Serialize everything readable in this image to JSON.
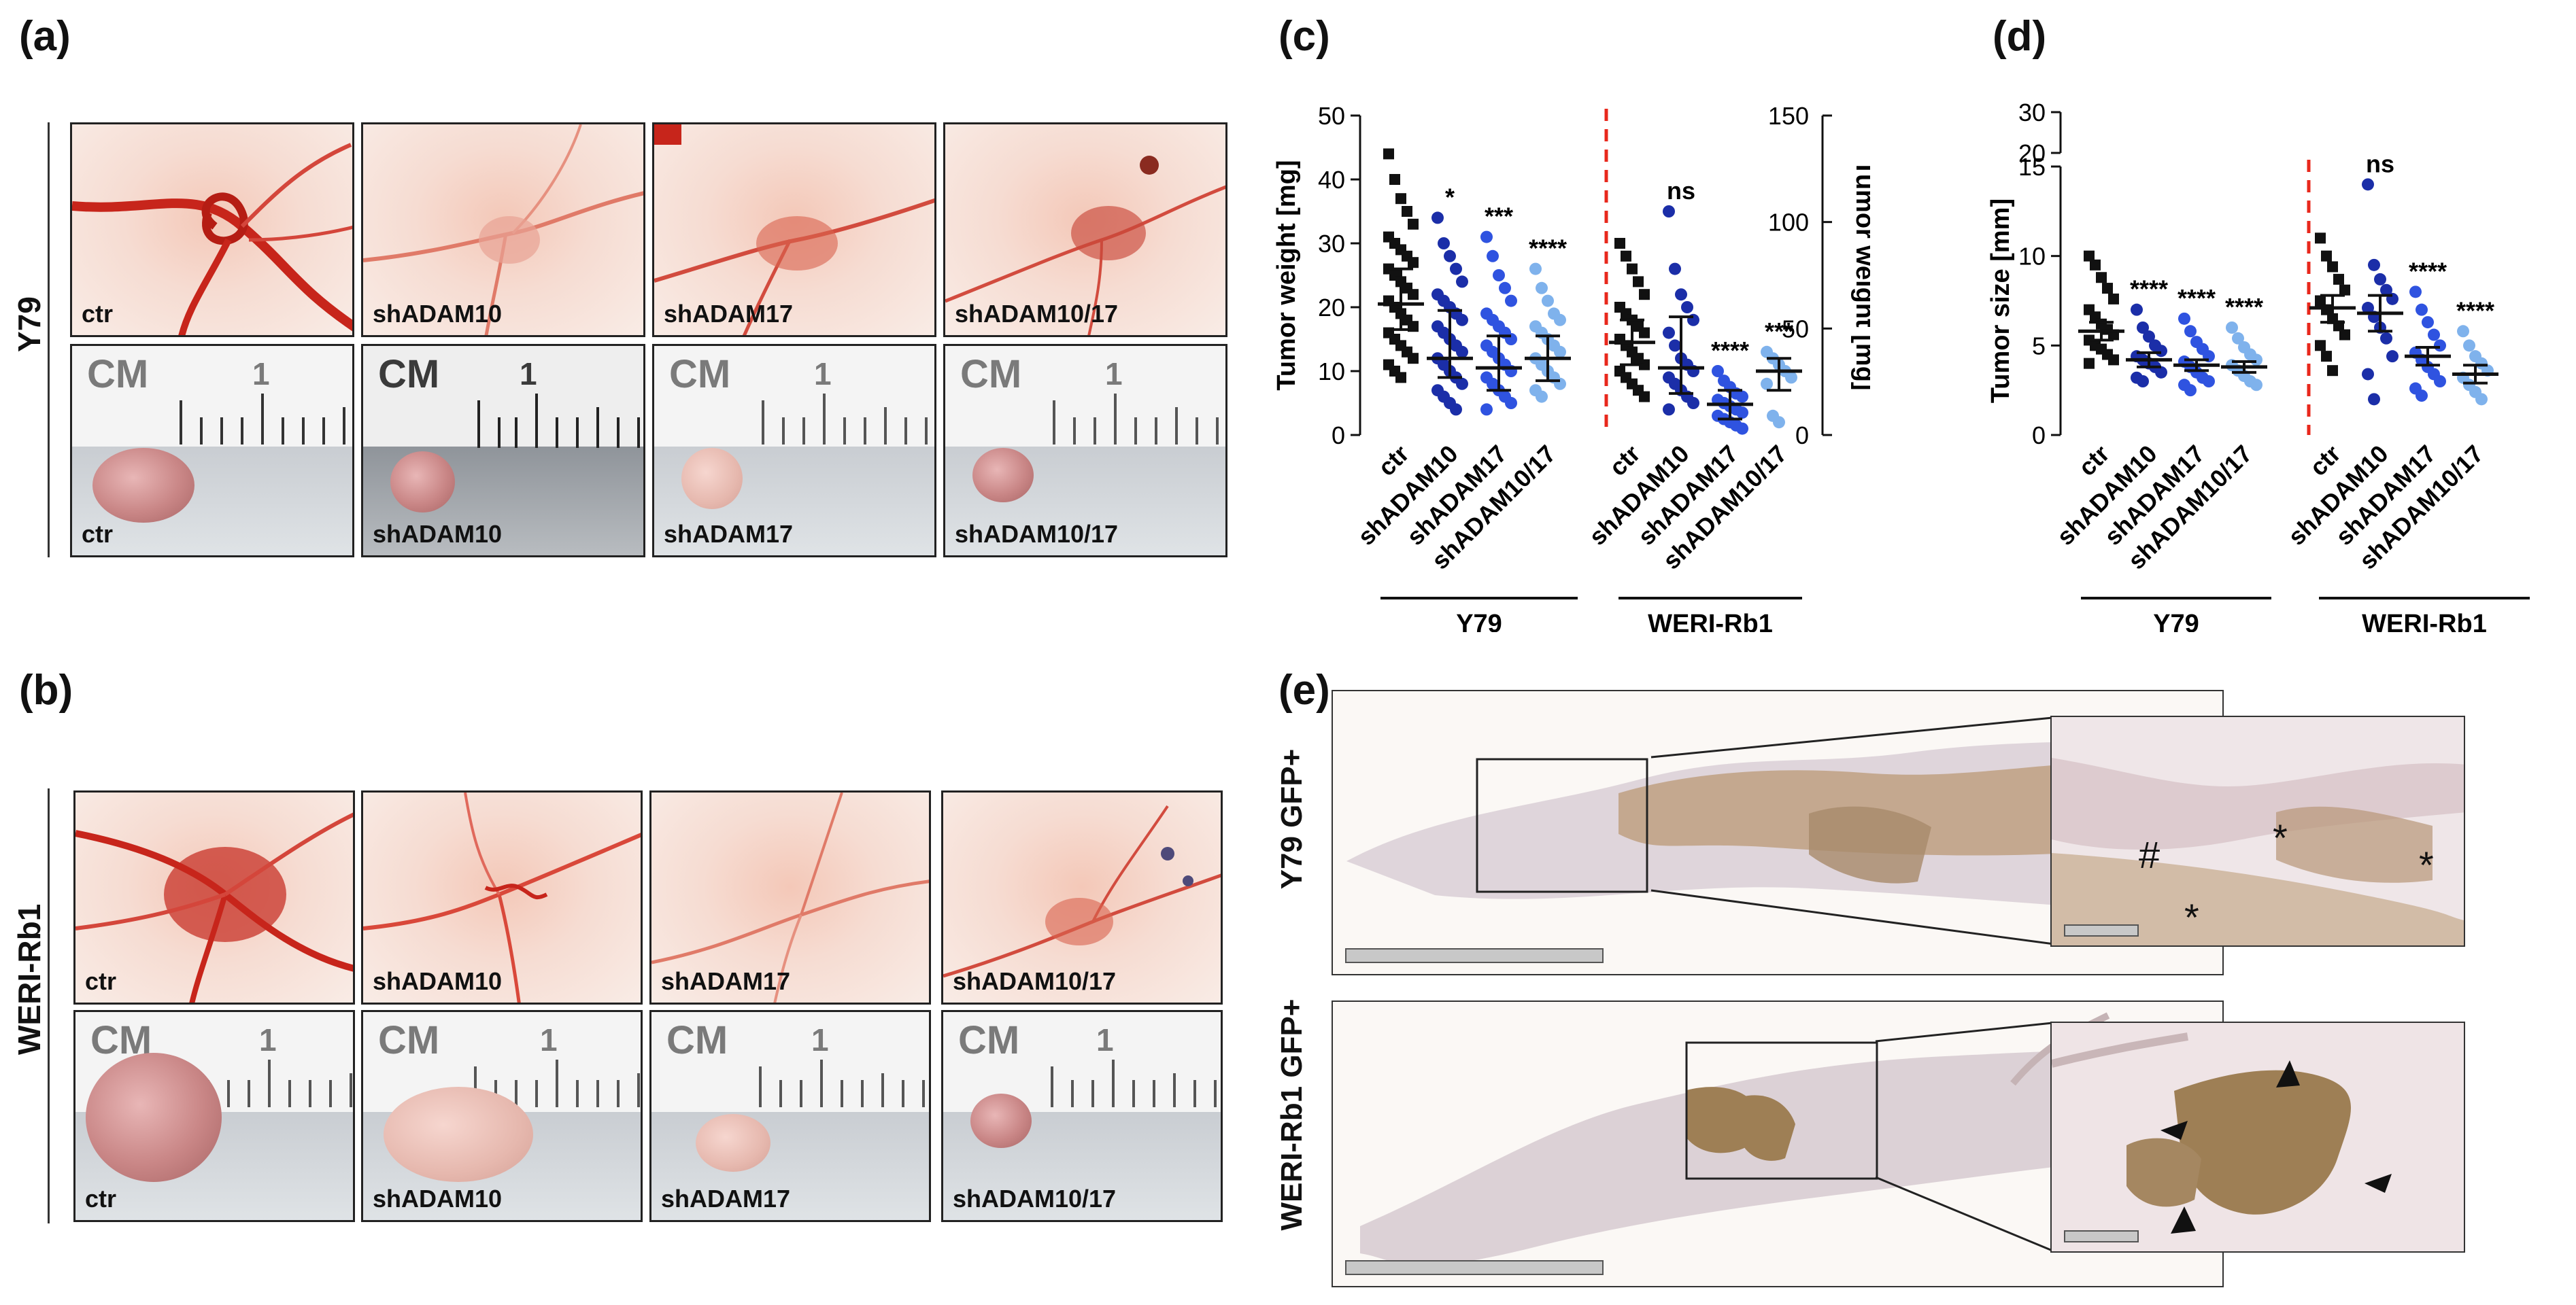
{
  "panels": {
    "a": "(a)",
    "b": "(b)",
    "c": "(c)",
    "d": "(d)",
    "e": "(e)"
  },
  "rows": {
    "a_label": "Y79",
    "b_label": "WERI-Rb1"
  },
  "photo_labels": {
    "a_top": [
      "ctr",
      "shADAM10",
      "shADAM17",
      "shADAM10/17"
    ],
    "a_bottom": [
      "ctr",
      "shADAM10",
      "shADAM17",
      "shADAM10/17"
    ],
    "b_top": [
      "ctr",
      "shADAM10",
      "shADAM17",
      "shADAM10/17"
    ],
    "b_bottom": [
      "ctr",
      "shADAM10",
      "shADAM17",
      "shADAM10/17"
    ]
  },
  "ruler": {
    "cm": "CM",
    "one": "1"
  },
  "histo": {
    "top_label": "Y79 GFP+",
    "bottom_label": "WERI-Rb1 GFP+",
    "hash": "#",
    "star": "*"
  },
  "chart_data": [
    {
      "type": "scatter",
      "panel": "c",
      "ylabel": "Tumor weight [mg]",
      "ylabel_right": "Tumor weight [mg]",
      "ylim": [
        0,
        50
      ],
      "yticks": [
        "0",
        "10",
        "20",
        "30",
        "40",
        "50"
      ],
      "ylim_right": [
        0,
        150
      ],
      "yticks_right": [
        "0",
        "50",
        "100",
        "150"
      ],
      "categories": [
        "ctr",
        "shADAM10",
        "shADAM17",
        "shADAM10/17",
        "ctr",
        "shADAM10",
        "shADAM17",
        "shADAM10/17"
      ],
      "groups": [
        "Y79",
        "WERI-Rb1"
      ],
      "means": [
        20.5,
        12,
        10.5,
        12,
        14.5,
        10.5,
        4.8,
        10
      ],
      "sem_low": [
        16.5,
        9,
        7,
        8.5,
        11,
        6.5,
        2.5,
        7
      ],
      "sem_high": [
        26,
        19.5,
        15.5,
        15.5,
        18,
        18.5,
        7,
        12
      ],
      "significance": [
        "",
        "*",
        "***",
        "****",
        "",
        "ns",
        "****",
        "***"
      ],
      "points": [
        [
          44,
          40,
          37,
          35,
          33,
          31,
          30,
          29,
          28,
          27,
          26,
          25,
          24,
          23,
          22,
          21,
          20,
          19,
          18,
          17,
          16,
          15,
          14,
          13,
          12,
          11,
          10,
          9
        ],
        [
          34,
          30,
          28,
          26,
          24,
          22,
          21,
          20,
          19,
          18,
          17,
          16,
          15,
          14,
          13,
          12,
          11,
          10,
          9,
          8,
          7,
          6,
          5,
          4
        ],
        [
          31,
          28,
          25,
          23,
          21,
          19,
          18,
          17,
          16,
          15,
          14,
          13,
          12,
          11,
          10,
          9,
          8,
          7,
          6,
          5,
          4
        ],
        [
          26,
          23,
          21,
          19,
          18,
          17,
          16,
          15,
          14,
          13,
          12,
          11,
          10,
          9,
          8,
          7,
          6
        ],
        [
          30,
          28,
          26,
          24,
          22,
          20,
          19,
          18,
          17,
          16,
          15,
          14,
          13,
          12,
          11,
          10,
          9,
          8,
          7,
          6
        ],
        [
          35,
          26,
          22,
          20,
          18,
          16,
          14,
          12,
          11,
          10,
          9,
          8,
          7,
          6,
          5,
          4
        ],
        [
          10,
          8.5,
          7.5,
          6.5,
          6,
          5.5,
          5,
          4.5,
          4,
          3.5,
          3,
          2.5,
          2,
          1.5,
          1
        ],
        [
          13,
          12,
          11,
          10,
          9,
          8,
          3,
          2
        ]
      ]
    },
    {
      "type": "scatter",
      "panel": "d",
      "ylabel": "Tumor size [mm]",
      "yticks": [
        "0",
        "5",
        "10",
        "15",
        "20",
        "30"
      ],
      "categories": [
        "ctr",
        "shADAM10",
        "shADAM17",
        "shADAM10/17",
        "ctr",
        "shADAM10",
        "shADAM17",
        "shADAM10/17"
      ],
      "groups": [
        "Y79",
        "WERI-Rb1"
      ],
      "means": [
        5.8,
        4.2,
        3.9,
        3.8,
        7.1,
        6.8,
        4.4,
        3.4
      ],
      "sem_low": [
        5.3,
        3.8,
        3.6,
        3.5,
        6.3,
        5.8,
        3.9,
        2.9
      ],
      "sem_high": [
        6.3,
        4.6,
        4.2,
        4.1,
        7.8,
        7.8,
        4.9,
        3.9
      ],
      "significance": [
        "",
        "****",
        "****",
        "****",
        "",
        "ns",
        "****",
        "****"
      ],
      "points": [
        [
          10,
          9.5,
          8.8,
          8.2,
          7.6,
          7,
          6.6,
          6.2,
          5.9,
          5.6,
          5.3,
          5,
          4.8,
          4.5,
          4.2,
          4
        ],
        [
          7,
          6,
          5.5,
          5,
          4.7,
          4.4,
          4.2,
          4,
          3.8,
          3.5,
          3.2,
          3
        ],
        [
          6.5,
          5.8,
          5.2,
          4.8,
          4.4,
          4.1,
          3.8,
          3.5,
          3.2,
          3,
          2.8,
          2.5
        ],
        [
          6,
          5.4,
          4.9,
          4.5,
          4.2,
          3.9,
          3.6,
          3.3,
          3,
          2.8
        ],
        [
          11,
          10,
          9.4,
          8.7,
          8.1,
          7.5,
          7,
          6.5,
          6.1,
          5.6,
          5,
          4.4,
          3.6
        ],
        [
          14,
          9.5,
          8.7,
          8.1,
          7.6,
          7.1,
          6.6,
          6,
          5.4,
          4.4,
          3.4,
          2
        ],
        [
          8,
          7,
          6.3,
          5.6,
          5,
          4.6,
          4.2,
          3.8,
          3.4,
          3,
          2.6,
          2.2
        ],
        [
          5.8,
          5,
          4.4,
          4,
          3.6,
          3.2,
          2.8,
          2.4,
          2
        ]
      ]
    }
  ]
}
